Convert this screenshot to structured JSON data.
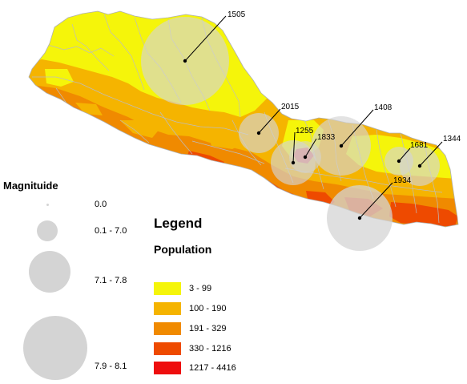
{
  "map": {
    "annotations": [
      {
        "label": "1505"
      },
      {
        "label": "2015"
      },
      {
        "label": "1408"
      },
      {
        "label": "1255"
      },
      {
        "label": "1833"
      },
      {
        "label": "1681"
      },
      {
        "label": "1344"
      },
      {
        "label": "1934"
      }
    ]
  },
  "magnitude_legend": {
    "title": "Magnituide",
    "items": [
      {
        "label": "0.0"
      },
      {
        "label": "0.1 - 7.0"
      },
      {
        "label": "7.1 - 7.8"
      },
      {
        "label": "7.9 - 8.1"
      }
    ]
  },
  "population_legend": {
    "title": "Legend",
    "subtitle": "Population",
    "items": [
      {
        "label": "3 - 99",
        "color": "#f5f50a"
      },
      {
        "label": "100 - 190",
        "color": "#f5b400"
      },
      {
        "label": "191 - 329",
        "color": "#f08a00"
      },
      {
        "label": "330 - 1216",
        "color": "#ee4a00"
      },
      {
        "label": "1217 - 4416",
        "color": "#ee0e0e"
      }
    ]
  },
  "colors": {
    "circle_fill": "#d4d4d4",
    "boundary": "#bdbdbd"
  }
}
